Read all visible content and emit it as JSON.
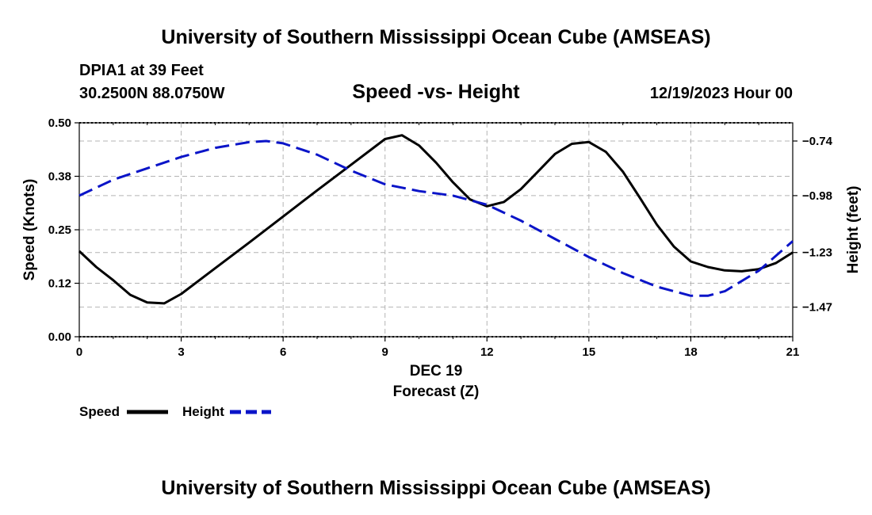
{
  "page": {
    "title": "University of Southern Mississippi Ocean Cube (AMSEAS)",
    "footer_title": "University of Southern Mississippi Ocean Cube (AMSEAS)",
    "station": "DPIA1 at 39 Feet",
    "location": "30.2500N  88.0750W",
    "datetime": "12/19/2023 Hour 00"
  },
  "colors": {
    "speed": "#000000",
    "height": "#0a14c8",
    "grid": "#b4b4b4"
  },
  "chart_data": {
    "type": "line",
    "title": "Speed -vs- Height",
    "xlabel_date": "DEC 19",
    "xlabel": "Forecast (Z)",
    "ylabel": "Speed (Knots)",
    "y2label": "Height (feet)",
    "xlim": [
      0,
      21
    ],
    "ylim": [
      0.0,
      0.5
    ],
    "y2lim": [
      -1.6,
      -0.66
    ],
    "x_ticks": [
      0,
      3,
      6,
      9,
      12,
      15,
      18,
      21
    ],
    "x_tick_labels": [
      "0",
      "3",
      "6",
      "9",
      "12",
      "15",
      "18",
      "21"
    ],
    "y_ticks": [
      0.0,
      0.125,
      0.25,
      0.375,
      0.5
    ],
    "y_tick_labels": [
      "0.00",
      "0.12",
      "0.25",
      "0.38",
      "0.50"
    ],
    "y2_ticks": [
      -0.74,
      -0.98,
      -1.23,
      -1.47
    ],
    "y2_tick_labels": [
      "-0.74",
      "-0.98",
      "-1.23",
      "-1.47"
    ],
    "grid": true,
    "series": [
      {
        "name": "Speed",
        "axis": "left",
        "style": "solid",
        "x": [
          0,
          0.5,
          1,
          1.5,
          2,
          2.5,
          3,
          4,
          5,
          6,
          7,
          8,
          9,
          9.5,
          10,
          10.5,
          11,
          11.5,
          12,
          12.5,
          13,
          13.5,
          14,
          14.5,
          15,
          15.5,
          16,
          16.5,
          17,
          17.5,
          18,
          18.5,
          19,
          19.5,
          20,
          20.5,
          21
        ],
        "values": [
          0.2,
          0.163,
          0.132,
          0.098,
          0.08,
          0.078,
          0.1,
          0.16,
          0.22,
          0.281,
          0.342,
          0.402,
          0.462,
          0.471,
          0.447,
          0.407,
          0.361,
          0.321,
          0.305,
          0.315,
          0.345,
          0.386,
          0.427,
          0.451,
          0.455,
          0.432,
          0.386,
          0.325,
          0.262,
          0.211,
          0.176,
          0.163,
          0.155,
          0.153,
          0.158,
          0.172,
          0.197
        ]
      },
      {
        "name": "Height",
        "axis": "right",
        "style": "dashed",
        "x": [
          0,
          1,
          2,
          3,
          4,
          5,
          5.5,
          6,
          7,
          8,
          9,
          10,
          11,
          12,
          13,
          14,
          15,
          16,
          17,
          18,
          18.5,
          19,
          20,
          21
        ],
        "values": [
          -0.98,
          -0.91,
          -0.86,
          -0.81,
          -0.77,
          -0.745,
          -0.74,
          -0.75,
          -0.8,
          -0.87,
          -0.93,
          -0.96,
          -0.98,
          -1.02,
          -1.09,
          -1.17,
          -1.25,
          -1.32,
          -1.38,
          -1.42,
          -1.42,
          -1.4,
          -1.31,
          -1.18
        ]
      }
    ],
    "legend": [
      {
        "label": "Speed",
        "style": "solid"
      },
      {
        "label": "Height",
        "style": "dashed"
      }
    ]
  }
}
